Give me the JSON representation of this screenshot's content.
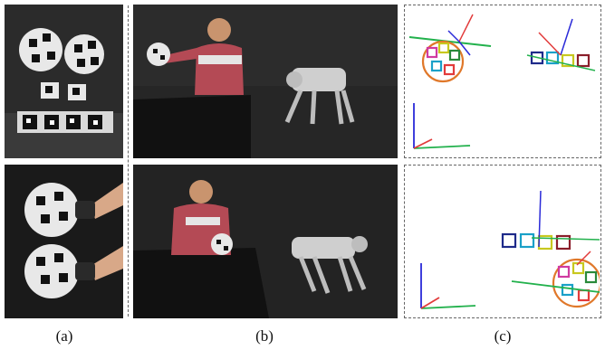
{
  "captions": {
    "a": "(a)",
    "b": "(b)",
    "c": "(c)"
  },
  "colors": {
    "axis_x": "#e23b3b",
    "axis_y": "#22b14c",
    "axis_z": "#2a2ad8",
    "marker_palette": [
      "#1e2a8a",
      "#1aa0c8",
      "#c8c81e",
      "#d03aa0",
      "#8a1e2a",
      "#2a8a3a",
      "#e0782a"
    ]
  }
}
